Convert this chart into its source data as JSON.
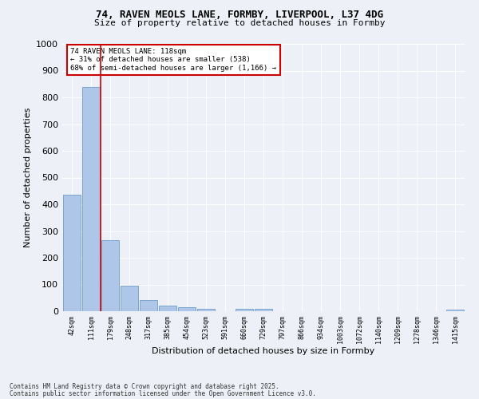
{
  "title_line1": "74, RAVEN MEOLS LANE, FORMBY, LIVERPOOL, L37 4DG",
  "title_line2": "Size of property relative to detached houses in Formby",
  "xlabel": "Distribution of detached houses by size in Formby",
  "ylabel": "Number of detached properties",
  "bin_labels": [
    "42sqm",
    "111sqm",
    "179sqm",
    "248sqm",
    "317sqm",
    "385sqm",
    "454sqm",
    "523sqm",
    "591sqm",
    "660sqm",
    "729sqm",
    "797sqm",
    "866sqm",
    "934sqm",
    "1003sqm",
    "1072sqm",
    "1140sqm",
    "1209sqm",
    "1278sqm",
    "1346sqm",
    "1415sqm"
  ],
  "bar_heights": [
    435,
    840,
    265,
    95,
    43,
    20,
    15,
    10,
    0,
    10,
    10,
    0,
    0,
    0,
    0,
    0,
    0,
    0,
    0,
    0,
    5
  ],
  "bar_color": "#aec6e8",
  "bar_edge_color": "#5a8fc2",
  "property_line_x": 1.5,
  "annotation_title": "74 RAVEN MEOLS LANE: 118sqm",
  "annotation_line2": "← 31% of detached houses are smaller (538)",
  "annotation_line3": "68% of semi-detached houses are larger (1,166) →",
  "annotation_box_color": "#ffffff",
  "annotation_box_edge": "#cc0000",
  "vline_color": "#cc0000",
  "footer_line1": "Contains HM Land Registry data © Crown copyright and database right 2025.",
  "footer_line2": "Contains public sector information licensed under the Open Government Licence v3.0.",
  "ylim": [
    0,
    1000
  ],
  "background_color": "#edf1f7",
  "grid_color": "#ffffff"
}
